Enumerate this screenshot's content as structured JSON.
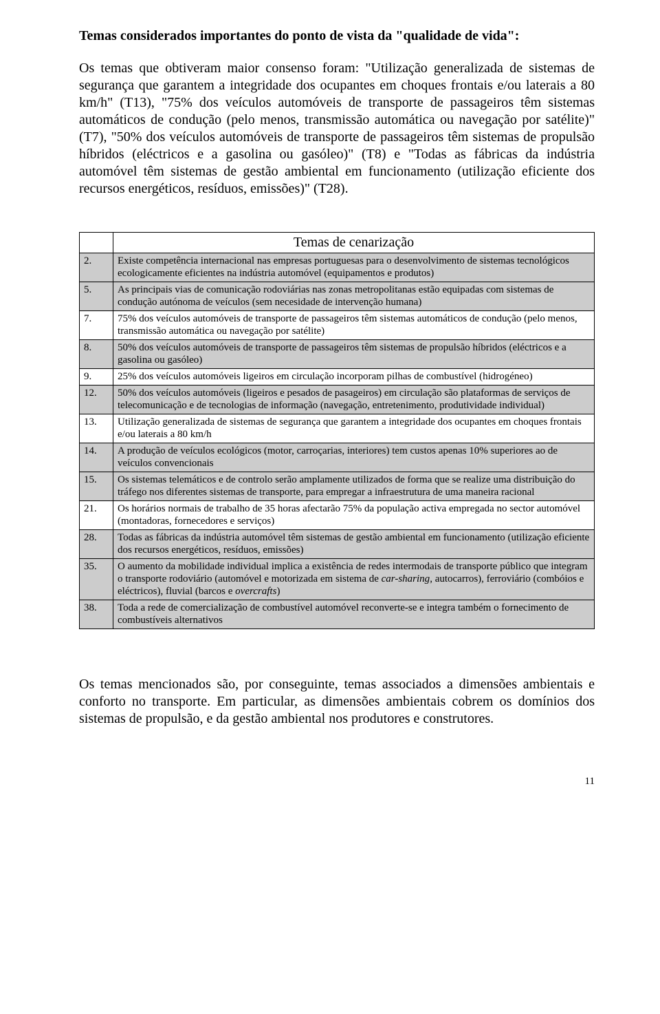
{
  "heading": "Temas considerados importantes do ponto de vista da \"qualidade de vida\":",
  "paragraph": "Os temas que obtiveram maior consenso foram: \"Utilização generalizada de sistemas de segurança que garantem a integridade dos ocupantes em choques frontais e/ou laterais a 80 km/h\" (T13), \"75% dos veículos automóveis de transporte de passageiros têm sistemas automáticos de condução (pelo menos, transmissão automática ou navegação por satélite)\" (T7), \"50% dos veículos automóveis de transporte de passageiros têm sistemas de propulsão híbridos (eléctricos e a gasolina ou gasóleo)\" (T8) e \"Todas as fábricas da indústria automóvel têm sistemas de gestão ambiental em funcionamento (utilização eficiente dos recursos energéticos, resíduos, emissões)\" (T28).",
  "tableCaption": "Temas de cenarização",
  "rows": [
    {
      "num": "2.",
      "shaded": true,
      "text": "Existe competência internacional nas empresas portuguesas para o desenvolvimento de sistemas tecnológicos ecologicamente eficientes na indústria automóvel (equipamentos e produtos)"
    },
    {
      "num": "5.",
      "shaded": true,
      "text": "As principais vias de comunicação rodoviárias nas zonas metropolitanas estão equipadas com sistemas de condução autónoma de veículos (sem necesidade de intervenção humana)"
    },
    {
      "num": "7.",
      "shaded": false,
      "text": "75% dos veículos automóveis de transporte de passageiros têm sistemas automáticos de condução (pelo menos, transmissão automática ou navegação por satélite)"
    },
    {
      "num": "8.",
      "shaded": true,
      "text": "50% dos veículos automóveis de transporte de passageiros têm sistemas de propulsão híbridos (eléctricos e a gasolina ou gasóleo)"
    },
    {
      "num": "9.",
      "shaded": false,
      "text": "25% dos veículos automóveis ligeiros em circulação incorporam pilhas de combustível (hidrogéneo)"
    },
    {
      "num": "12.",
      "shaded": true,
      "text": "50% dos veículos automóveis (ligeiros e pesados de pasageiros) em circulação são plataformas de serviços de telecomunicação e de tecnologias de informação (navegação, entretenimento, produtividade individual)"
    },
    {
      "num": "13.",
      "shaded": false,
      "text": "Utilização generalizada de sistemas de segurança que garantem a integridade dos ocupantes em choques frontais e/ou laterais a 80 km/h"
    },
    {
      "num": "14.",
      "shaded": true,
      "text": "A produção de veículos ecológicos (motor, carroçarias, interiores) tem custos apenas 10% superiores ao de veículos convencionais"
    },
    {
      "num": "15.",
      "shaded": true,
      "text": "Os sistemas telemáticos e de controlo serão amplamente utilizados de forma que se realize uma distribuição do tráfego nos diferentes sistemas de transporte, para empregar a infraestrutura de uma maneira racional"
    },
    {
      "num": "21.",
      "shaded": false,
      "text": "Os horários normais de trabalho de 35 horas afectarão 75% da população activa empregada no sector automóvel (montadoras, fornecedores e serviços)"
    },
    {
      "num": "28.",
      "shaded": true,
      "text": "Todas as fábricas da indústria automóvel têm sistemas de gestão ambiental em funcionamento (utilização eficiente dos recursos energéticos, resíduos, emissões)"
    },
    {
      "num": "35.",
      "shaded": true,
      "text": "O aumento da mobilidade individual implica a existência de redes intermodais de transporte público que integram o transporte rodoviário (automóvel e motorizada em sistema de car-sharing, autocarros), ferroviário (combóios e eléctricos), fluvial (barcos e overcrafts)"
    },
    {
      "num": "38.",
      "shaded": true,
      "text": "Toda a rede de comercialização de combustível automóvel reconverte-se e integra também o fornecimento de combustíveis alternativos"
    }
  ],
  "italicTerms": [
    "car-sharing",
    "overcrafts"
  ],
  "footer": "Os temas mencionados são, por conseguinte, temas associados a dimensões ambientais e conforto no transporte. Em particular, as dimensões ambientais cobrem os domínios dos sistemas de propulsão, e da gestão ambiental nos produtores e construtores.",
  "pageNumber": "11"
}
